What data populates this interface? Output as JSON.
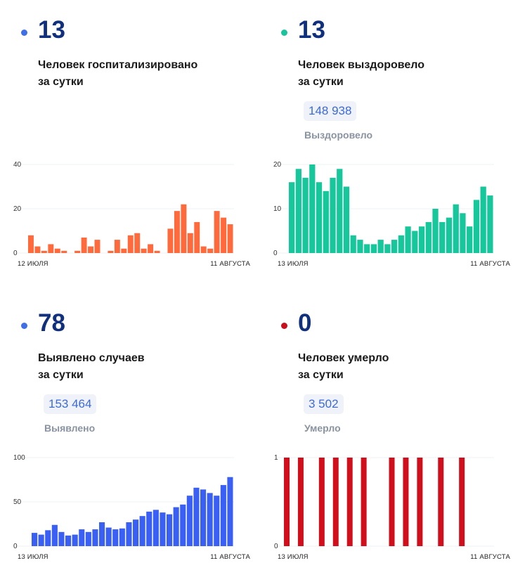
{
  "colors": {
    "blue_dot": "#3f6fe6",
    "teal_dot": "#19c49c",
    "red_dot": "#c80f1e",
    "hosp_bar": "#ff6a3d",
    "recov_bar": "#15c79a",
    "cases_bar": "#3a5ff5",
    "death_bar": "#d10f1c"
  },
  "panels": {
    "hospitalized": {
      "value": "13",
      "line1": "Человек госпитализировано",
      "line2": "за сутки"
    },
    "recovered": {
      "value": "13",
      "line1": "Человек выздоровело",
      "line2": "за сутки",
      "total": "148 938",
      "total_label": "Выздоровело"
    },
    "cases": {
      "value": "78",
      "line1": "Выявлено случаев",
      "line2": "за сутки",
      "total": "153 464",
      "total_label": "Выявлено"
    },
    "deaths": {
      "value": "0",
      "line1": "Человек умерло",
      "line2": "за сутки",
      "total": "3 502",
      "total_label": "Умерло"
    }
  },
  "chart_data": [
    {
      "type": "bar",
      "series": [
        {
          "color": "#ff6a3d",
          "values": [
            8,
            3,
            1,
            4,
            2,
            1,
            0,
            1,
            7,
            3,
            6,
            0,
            1,
            6,
            2,
            8,
            9,
            2,
            4,
            1,
            0,
            11,
            19,
            22,
            9,
            14,
            3,
            2,
            19,
            16,
            13
          ]
        }
      ],
      "yticks": [
        0,
        20,
        40
      ],
      "ylim": [
        0,
        40
      ],
      "x_start": "12 ИЮЛЯ",
      "x_end": "11 АВГУСТА"
    },
    {
      "type": "bar",
      "series": [
        {
          "color": "#15c79a",
          "values": [
            16,
            19,
            17,
            20,
            16,
            14,
            17,
            19,
            15,
            4,
            3,
            2,
            2,
            3,
            2,
            3,
            4,
            6,
            5,
            6,
            7,
            10,
            7,
            8,
            11,
            9,
            6,
            12,
            15,
            13
          ]
        }
      ],
      "yticks": [
        0,
        10,
        20
      ],
      "ylim": [
        0,
        20
      ],
      "x_start": "13 ИЮЛЯ",
      "x_end": "11 АВГУСТА"
    },
    {
      "type": "bar",
      "series": [
        {
          "color": "#3a5ff5",
          "values": [
            15,
            13,
            18,
            24,
            16,
            12,
            13,
            19,
            16,
            19,
            27,
            21,
            19,
            20,
            27,
            30,
            34,
            39,
            41,
            38,
            36,
            44,
            47,
            57,
            66,
            64,
            60,
            57,
            69,
            78
          ]
        }
      ],
      "yticks": [
        0,
        50,
        100
      ],
      "ylim": [
        0,
        100
      ],
      "x_start": "13 ИЮЛЯ",
      "x_end": "11 АВГУСТА"
    },
    {
      "type": "bar",
      "series": [
        {
          "color": "#d10f1c",
          "values": [
            1,
            0,
            1,
            0,
            0,
            1,
            0,
            1,
            0,
            1,
            0,
            1,
            0,
            0,
            0,
            1,
            0,
            1,
            0,
            1,
            0,
            0,
            1,
            0,
            0,
            1,
            0,
            0,
            0,
            0
          ]
        }
      ],
      "yticks": [
        0,
        1
      ],
      "ylim": [
        0,
        1
      ],
      "x_start": "13 ИЮЛЯ",
      "x_end": "11 АВГУСТА"
    }
  ]
}
